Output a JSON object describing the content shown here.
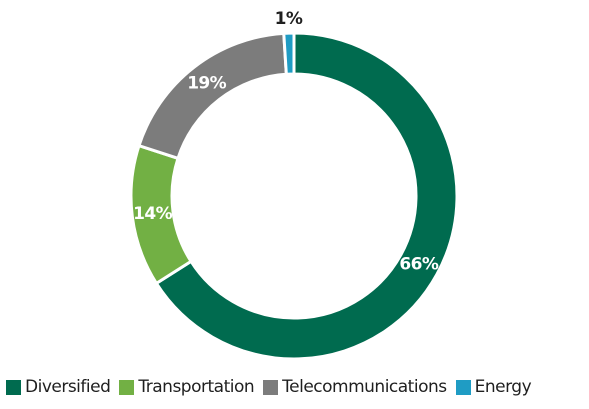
{
  "chart_data": {
    "type": "pie",
    "variant": "donut",
    "categories": [
      "Diversified",
      "Transportation",
      "Telecommunications",
      "Energy"
    ],
    "values": [
      66,
      14,
      19,
      1
    ],
    "data_labels": [
      "66%",
      "14%",
      "19%",
      "1%"
    ],
    "unit": "%",
    "colors": [
      "#006b4f",
      "#72b044",
      "#7c7c7c",
      "#1f9cc4"
    ],
    "label_colors": [
      "#ffffff",
      "#ffffff",
      "#ffffff",
      "#1f1f1f"
    ],
    "legend_placement": "bottom",
    "start_angle": "12 o'clock",
    "direction": "clockwise",
    "title": "",
    "legend": [
      {
        "label": "Diversified",
        "color": "#006b4f"
      },
      {
        "label": "Transportation",
        "color": "#72b044"
      },
      {
        "label": "Telecommunications",
        "color": "#7c7c7c"
      },
      {
        "label": "Energy",
        "color": "#1f9cc4"
      }
    ]
  }
}
